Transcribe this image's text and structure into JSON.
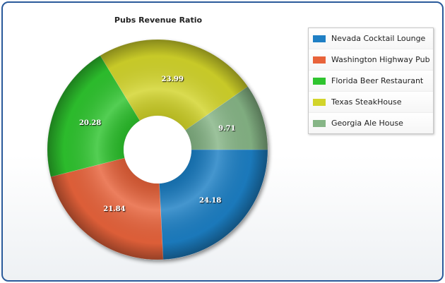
{
  "chart_data": {
    "type": "pie",
    "title": "Pubs Revenue Ratio",
    "legend_position": "top-right",
    "slices": [
      {
        "label": "Nevada Cocktail Lounge",
        "value": 24.18,
        "color": "#1f7fc4"
      },
      {
        "label": "Washington Highway Pub",
        "value": 21.84,
        "color": "#e8633a"
      },
      {
        "label": "Florida Beer Restaurant",
        "value": 20.28,
        "color": "#2fc42f"
      },
      {
        "label": "Texas SteakHouse",
        "value": 23.99,
        "color": "#d2d42a"
      },
      {
        "label": "Georgia Ale House",
        "value": 9.71,
        "color": "#86b586"
      }
    ]
  }
}
